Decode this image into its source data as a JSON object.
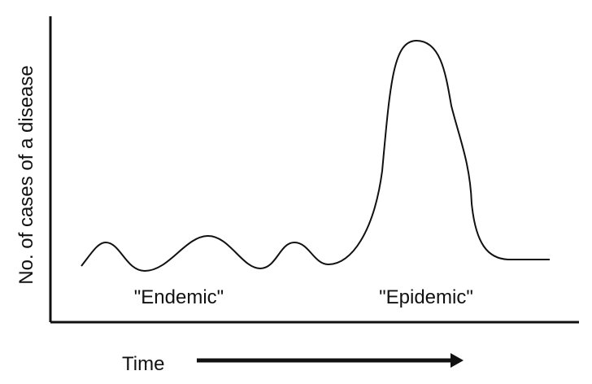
{
  "diagram": {
    "y_axis_label": "No. of cases of a disease",
    "x_axis_label": "Time",
    "endemic_label": "\"Endemic\"",
    "epidemic_label": "\"Epidemic\""
  },
  "colors": {
    "ink": "#111111",
    "background": "#ffffff"
  }
}
